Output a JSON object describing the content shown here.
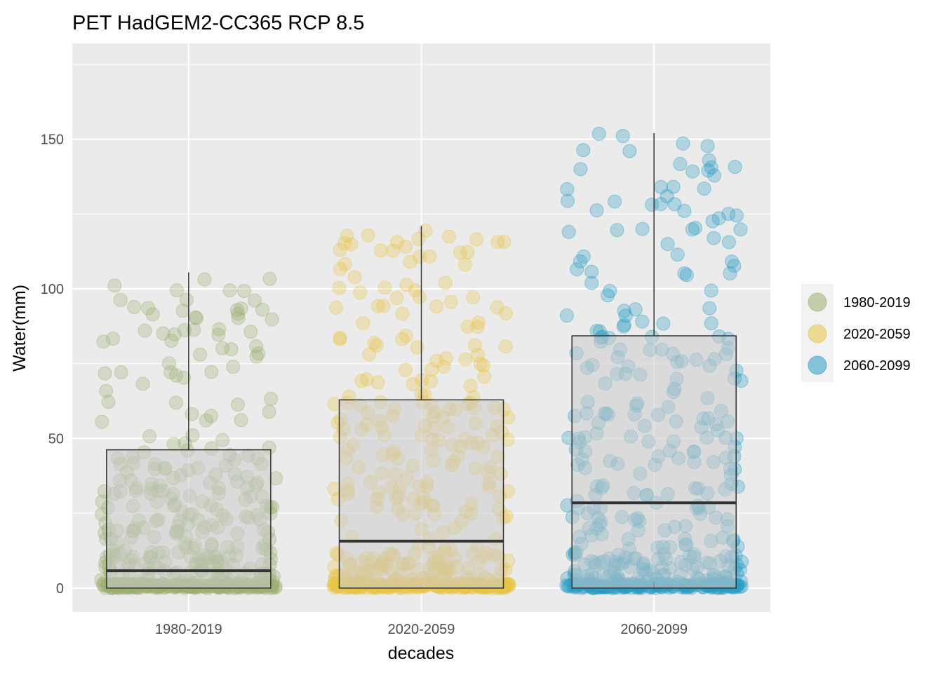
{
  "chart_data": {
    "type": "box-jitter",
    "title": "PET HadGEM2-CC365 RCP 8.5",
    "xlabel": "decades",
    "ylabel": "Water(mm)",
    "ylim": [
      -8,
      182
    ],
    "yticks": [
      0,
      50,
      100,
      150
    ],
    "categories": [
      "1980-2019",
      "2020-2059",
      "2060-2099"
    ],
    "colors": [
      "#9caf6f",
      "#e8c547",
      "#2a9dc4"
    ],
    "grid": true,
    "legend_position": "right",
    "boxes": [
      {
        "category": "1980-2019",
        "min": 0,
        "q1": 0.3,
        "median": 5.8,
        "q3": 46.2,
        "max": 105.5
      },
      {
        "category": "2020-2059",
        "min": 0,
        "q1": 0.3,
        "median": 15.7,
        "q3": 62.9,
        "max": 121.0
      },
      {
        "category": "2060-2099",
        "min": 0,
        "q1": 2.0,
        "median": 28.5,
        "q3": 84.3,
        "max": 152.0
      }
    ],
    "points": [
      {
        "category": "1980-2019",
        "n": 480,
        "zero_fraction": 0.38,
        "max": 105.5,
        "q3": 46.2
      },
      {
        "category": "2020-2059",
        "n": 480,
        "zero_fraction": 0.4,
        "max": 121.0,
        "q3": 62.9
      },
      {
        "category": "2060-2099",
        "n": 480,
        "zero_fraction": 0.32,
        "max": 152.0,
        "q3": 84.3
      }
    ]
  },
  "legend": {
    "items": [
      {
        "label": "1980-2019",
        "color": "#9caf6f"
      },
      {
        "label": "2020-2059",
        "color": "#e8c547"
      },
      {
        "label": "2060-2099",
        "color": "#2a9dc4"
      }
    ]
  }
}
